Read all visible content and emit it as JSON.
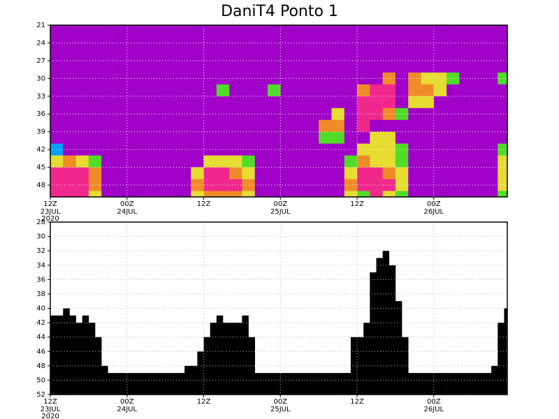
{
  "chart_data": [
    {
      "type": "heatmap",
      "title": "DaniT4 Ponto 1",
      "xlim": [
        0,
        71.5
      ],
      "ylim": [
        21,
        50
      ],
      "y_inverted": true,
      "grid": true,
      "yticks": [
        21,
        24,
        27,
        30,
        33,
        36,
        39,
        42,
        45,
        48
      ],
      "xticks": [
        {
          "value": 0,
          "label": "12Z"
        },
        {
          "value": 12,
          "label": "00Z"
        },
        {
          "value": 24,
          "label": "12Z"
        },
        {
          "value": 36,
          "label": "00Z"
        },
        {
          "value": 48,
          "label": "12Z"
        },
        {
          "value": 60,
          "label": "00Z"
        }
      ],
      "xtick_dates": [
        {
          "value": 0,
          "label": "23JUL"
        },
        {
          "value": 12,
          "label": "24JUL"
        },
        {
          "value": 36,
          "label": "25JUL"
        },
        {
          "value": 60,
          "label": "26JUL"
        }
      ],
      "xtick_year": {
        "value": 0,
        "label": "2020"
      },
      "palette": [
        "#a000c8",
        "#f0288c",
        "#f08c28",
        "#e6dc32",
        "#50dc28",
        "#00a0ff"
      ],
      "x_edges": [
        0,
        2,
        4,
        6,
        8,
        10,
        12,
        14,
        16,
        18,
        20,
        22,
        24,
        26,
        28,
        30,
        32,
        34,
        36,
        38,
        40,
        42,
        44,
        46,
        48,
        50,
        52,
        54,
        56,
        58,
        60,
        62,
        64,
        66,
        68,
        70,
        72
      ],
      "y_edges": [
        21,
        23,
        25,
        27,
        29,
        31,
        33,
        35,
        37,
        39,
        41,
        43,
        45,
        47,
        49,
        50
      ],
      "z": [
        [
          0,
          0,
          0,
          0,
          0,
          0,
          0,
          0,
          0,
          0,
          0,
          0,
          0,
          0,
          0,
          0,
          0,
          0,
          0,
          0,
          0,
          0,
          0,
          0,
          0,
          0,
          0,
          0,
          0,
          0,
          0,
          0,
          0,
          0,
          0,
          0
        ],
        [
          0,
          0,
          0,
          0,
          0,
          0,
          0,
          0,
          0,
          0,
          0,
          0,
          0,
          0,
          0,
          0,
          0,
          0,
          0,
          0,
          0,
          0,
          0,
          0,
          0,
          0,
          0,
          0,
          0,
          0,
          0,
          0,
          0,
          0,
          0,
          0
        ],
        [
          0,
          0,
          0,
          0,
          0,
          0,
          0,
          0,
          0,
          0,
          0,
          0,
          0,
          0,
          0,
          0,
          0,
          0,
          0,
          0,
          0,
          0,
          0,
          0,
          0,
          0,
          0,
          0,
          0,
          0,
          0,
          0,
          0,
          0,
          0,
          0
        ],
        [
          0,
          0,
          0,
          0,
          0,
          0,
          0,
          0,
          0,
          0,
          0,
          0,
          0,
          0,
          0,
          0,
          0,
          0,
          0,
          0,
          0,
          0,
          0,
          0,
          0,
          0,
          0,
          0,
          0,
          0,
          0,
          0,
          0,
          0,
          0,
          0
        ],
        [
          0,
          0,
          0,
          0,
          0,
          0,
          0,
          0,
          0,
          0,
          0,
          0,
          0,
          0,
          0,
          0,
          0,
          0,
          0,
          0,
          0,
          0,
          0,
          0,
          0,
          0,
          2,
          0,
          2,
          3,
          3,
          4,
          0,
          0,
          0,
          4
        ],
        [
          0,
          0,
          0,
          0,
          0,
          0,
          0,
          0,
          0,
          0,
          0,
          0,
          0,
          4,
          0,
          0,
          0,
          4,
          0,
          0,
          0,
          0,
          0,
          0,
          2,
          1,
          1,
          0,
          2,
          2,
          3,
          0,
          0,
          0,
          0,
          0
        ],
        [
          0,
          0,
          0,
          0,
          0,
          0,
          0,
          0,
          0,
          0,
          0,
          0,
          0,
          0,
          0,
          0,
          0,
          0,
          0,
          0,
          0,
          0,
          0,
          0,
          1,
          1,
          1,
          0,
          3,
          3,
          0,
          0,
          0,
          0,
          0,
          0
        ],
        [
          0,
          0,
          0,
          0,
          0,
          0,
          0,
          0,
          0,
          0,
          0,
          0,
          0,
          0,
          0,
          0,
          0,
          0,
          0,
          0,
          0,
          0,
          3,
          0,
          1,
          1,
          2,
          4,
          0,
          0,
          0,
          0,
          0,
          0,
          0,
          0
        ],
        [
          0,
          0,
          0,
          0,
          0,
          0,
          0,
          0,
          0,
          0,
          0,
          0,
          0,
          0,
          0,
          0,
          0,
          0,
          0,
          0,
          0,
          2,
          2,
          0,
          1,
          0,
          0,
          0,
          0,
          0,
          0,
          0,
          0,
          0,
          0,
          0
        ],
        [
          0,
          0,
          0,
          0,
          0,
          0,
          0,
          0,
          0,
          0,
          0,
          0,
          0,
          0,
          0,
          0,
          0,
          0,
          0,
          0,
          0,
          4,
          4,
          0,
          0,
          3,
          3,
          0,
          0,
          0,
          0,
          0,
          0,
          0,
          0,
          0
        ],
        [
          5,
          0,
          0,
          0,
          0,
          0,
          0,
          0,
          0,
          0,
          0,
          0,
          0,
          0,
          0,
          0,
          0,
          0,
          0,
          0,
          0,
          0,
          0,
          0,
          3,
          3,
          3,
          4,
          0,
          0,
          0,
          0,
          0,
          0,
          0,
          4
        ],
        [
          3,
          2,
          3,
          4,
          0,
          0,
          0,
          0,
          0,
          0,
          0,
          0,
          3,
          3,
          3,
          4,
          0,
          0,
          0,
          0,
          0,
          0,
          0,
          4,
          2,
          3,
          3,
          4,
          0,
          0,
          0,
          0,
          0,
          0,
          0,
          3
        ],
        [
          1,
          1,
          1,
          2,
          0,
          0,
          0,
          0,
          0,
          0,
          0,
          3,
          1,
          1,
          2,
          3,
          0,
          0,
          0,
          0,
          0,
          0,
          0,
          3,
          1,
          1,
          2,
          3,
          0,
          0,
          0,
          0,
          0,
          0,
          0,
          3
        ],
        [
          1,
          1,
          1,
          2,
          0,
          0,
          0,
          0,
          0,
          0,
          0,
          2,
          1,
          1,
          1,
          2,
          0,
          0,
          0,
          0,
          0,
          0,
          0,
          2,
          1,
          1,
          1,
          3,
          0,
          0,
          0,
          0,
          0,
          0,
          0,
          3
        ],
        [
          1,
          1,
          1,
          3,
          0,
          0,
          0,
          0,
          0,
          0,
          0,
          3,
          2,
          2,
          2,
          3,
          0,
          0,
          0,
          0,
          0,
          0,
          0,
          3,
          4,
          1,
          3,
          4,
          0,
          0,
          0,
          0,
          0,
          0,
          0,
          4
        ]
      ]
    },
    {
      "type": "bar",
      "xlim": [
        0,
        71.5
      ],
      "ylim": [
        28,
        52
      ],
      "y_inverted": true,
      "grid": true,
      "color": "#000000",
      "yticks": [
        28,
        30,
        32,
        34,
        36,
        38,
        40,
        42,
        44,
        46,
        48,
        50,
        52
      ],
      "xticks": [
        {
          "value": 0,
          "label": "12Z"
        },
        {
          "value": 12,
          "label": "00Z"
        },
        {
          "value": 24,
          "label": "12Z"
        },
        {
          "value": 36,
          "label": "00Z"
        },
        {
          "value": 48,
          "label": "12Z"
        },
        {
          "value": 60,
          "label": "00Z"
        }
      ],
      "xtick_dates": [
        {
          "value": 0,
          "label": "23JUL"
        },
        {
          "value": 12,
          "label": "24JUL"
        },
        {
          "value": 36,
          "label": "25JUL"
        },
        {
          "value": 60,
          "label": "26JUL"
        }
      ],
      "xtick_year": {
        "value": 0,
        "label": "2020"
      },
      "x": [
        0,
        1,
        2,
        3,
        4,
        5,
        6,
        7,
        8,
        9,
        10,
        11,
        12,
        13,
        14,
        15,
        16,
        17,
        18,
        19,
        20,
        21,
        22,
        23,
        24,
        25,
        26,
        27,
        28,
        29,
        30,
        31,
        32,
        33,
        34,
        35,
        36,
        37,
        38,
        39,
        40,
        41,
        42,
        43,
        44,
        45,
        46,
        47,
        48,
        49,
        50,
        51,
        52,
        53,
        54,
        55,
        56,
        57,
        58,
        59,
        60,
        61,
        62,
        63,
        64,
        65,
        66,
        67,
        68,
        69,
        70,
        71
      ],
      "values": [
        41,
        41,
        40,
        41,
        42,
        41,
        42,
        44,
        48,
        49,
        49,
        49,
        49,
        49,
        49,
        49,
        49,
        49,
        49,
        49,
        49,
        48,
        48,
        46,
        44,
        42,
        41,
        42,
        42,
        42,
        41,
        44,
        49,
        49,
        49,
        49,
        49,
        49,
        49,
        49,
        49,
        49,
        49,
        49,
        49,
        49,
        49,
        44,
        44,
        42,
        35,
        33,
        32,
        34,
        39,
        44,
        49,
        49,
        49,
        49,
        49,
        49,
        49,
        49,
        49,
        49,
        49,
        49,
        49,
        48,
        42,
        40
      ]
    }
  ]
}
